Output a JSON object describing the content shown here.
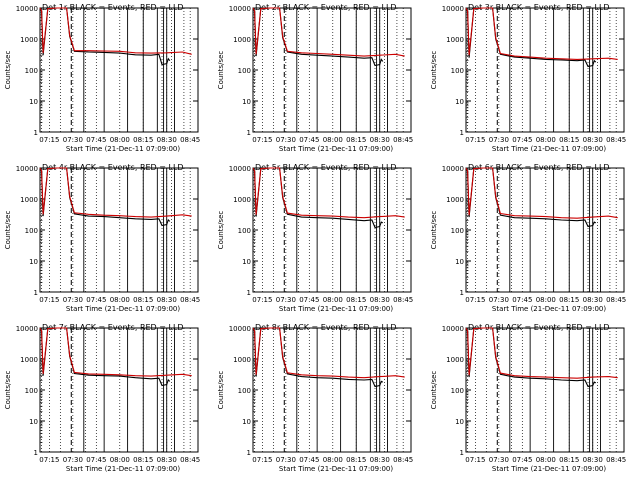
{
  "chart_data": [
    {
      "type": "line",
      "title": "Det 1r BLACK = Events, RED = LLD",
      "xlabel": "Start Time (21-Dec-11 07:09:00)",
      "ylabel": "Counts/sec",
      "y_scale": "log",
      "ylim": [
        1,
        10000
      ],
      "x_ticks": [
        "07:15",
        "07:30",
        "07:45",
        "08:00",
        "08:15",
        "08:30",
        "08:45"
      ],
      "y_ticks": [
        "1",
        "10",
        "100",
        "1000",
        "10000"
      ],
      "series": [
        {
          "name": "Events",
          "color": "#000000",
          "x": [
            "07:09",
            "07:10",
            "07:11",
            "07:14",
            "07:20",
            "07:26",
            "07:28",
            "07:31",
            "07:40",
            "07:50",
            "08:00",
            "08:10",
            "08:20",
            "08:25",
            "08:27",
            "08:30",
            "08:31",
            "08:32"
          ],
          "y": [
            10000,
            8000,
            300,
            9500,
            10000,
            10000,
            1200,
            400,
            380,
            370,
            350,
            310,
            300,
            320,
            150,
            160,
            230,
            200
          ]
        },
        {
          "name": "LLD",
          "color": "#cc0000",
          "x": [
            "07:09",
            "07:10",
            "07:11",
            "07:14",
            "07:20",
            "07:26",
            "07:28",
            "07:31",
            "07:40",
            "07:50",
            "08:00",
            "08:10",
            "08:20",
            "08:30",
            "08:40",
            "08:46"
          ],
          "y": [
            10000,
            8000,
            350,
            9500,
            10000,
            10000,
            1300,
            420,
            420,
            410,
            400,
            360,
            350,
            360,
            380,
            320
          ]
        }
      ]
    },
    {
      "type": "line",
      "title": "Det 2r BLACK = Events, RED = LLD",
      "xlabel": "Start Time (21-Dec-11 07:09:00)",
      "ylabel": "Counts/sec",
      "y_scale": "log",
      "ylim": [
        1,
        10000
      ],
      "x_ticks": [
        "07:15",
        "07:30",
        "07:45",
        "08:00",
        "08:15",
        "08:30",
        "08:45"
      ],
      "y_ticks": [
        "1",
        "10",
        "100",
        "1000",
        "10000"
      ],
      "series": [
        {
          "name": "Events",
          "color": "#000000",
          "x": [
            "07:09",
            "07:10",
            "07:11",
            "07:14",
            "07:20",
            "07:26",
            "07:28",
            "07:31",
            "07:40",
            "07:50",
            "08:00",
            "08:10",
            "08:20",
            "08:25",
            "08:27",
            "08:30",
            "08:31",
            "08:32"
          ],
          "y": [
            10000,
            8000,
            280,
            9500,
            10000,
            10000,
            1100,
            380,
            320,
            300,
            280,
            260,
            240,
            250,
            140,
            150,
            220,
            190
          ]
        },
        {
          "name": "LLD",
          "color": "#cc0000",
          "x": [
            "07:09",
            "07:10",
            "07:11",
            "07:14",
            "07:20",
            "07:26",
            "07:28",
            "07:31",
            "07:40",
            "07:50",
            "08:00",
            "08:10",
            "08:20",
            "08:30",
            "08:40",
            "08:46"
          ],
          "y": [
            10000,
            8000,
            320,
            9500,
            10000,
            10000,
            1200,
            400,
            360,
            340,
            320,
            300,
            280,
            300,
            320,
            280
          ]
        }
      ]
    },
    {
      "type": "line",
      "title": "Det 3r BLACK = Events, RED = LLD",
      "xlabel": "Start Time (21-Dec-11 07:09:00)",
      "ylabel": "Counts/sec",
      "y_scale": "log",
      "ylim": [
        1,
        10000
      ],
      "x_ticks": [
        "07:15",
        "07:30",
        "07:45",
        "08:00",
        "08:15",
        "08:30",
        "08:45"
      ],
      "y_ticks": [
        "1",
        "10",
        "100",
        "1000",
        "10000"
      ],
      "series": [
        {
          "name": "Events",
          "color": "#000000",
          "x": [
            "07:09",
            "07:10",
            "07:11",
            "07:14",
            "07:20",
            "07:26",
            "07:28",
            "07:31",
            "07:40",
            "07:50",
            "08:00",
            "08:10",
            "08:20",
            "08:25",
            "08:27",
            "08:30",
            "08:31",
            "08:32"
          ],
          "y": [
            10000,
            8000,
            250,
            9500,
            10000,
            10000,
            1000,
            320,
            260,
            240,
            220,
            210,
            200,
            210,
            130,
            140,
            200,
            180
          ]
        },
        {
          "name": "LLD",
          "color": "#cc0000",
          "x": [
            "07:09",
            "07:10",
            "07:11",
            "07:14",
            "07:20",
            "07:26",
            "07:28",
            "07:31",
            "07:40",
            "07:50",
            "08:00",
            "08:10",
            "08:20",
            "08:30",
            "08:40",
            "08:46"
          ],
          "y": [
            10000,
            8000,
            300,
            9500,
            10000,
            10000,
            1100,
            340,
            280,
            260,
            240,
            230,
            220,
            230,
            240,
            220
          ]
        }
      ]
    },
    {
      "type": "line",
      "title": "Det 4r BLACK = Events, RED = LLD",
      "xlabel": "Start Time (21-Dec-11 07:09:00)",
      "ylabel": "Counts/sec",
      "y_scale": "log",
      "ylim": [
        1,
        10000
      ],
      "x_ticks": [
        "07:15",
        "07:30",
        "07:45",
        "08:00",
        "08:15",
        "08:30",
        "08:45"
      ],
      "y_ticks": [
        "1",
        "10",
        "100",
        "1000",
        "10000"
      ],
      "series": [
        {
          "name": "Events",
          "color": "#000000",
          "x": [
            "07:09",
            "07:10",
            "07:11",
            "07:14",
            "07:20",
            "07:26",
            "07:28",
            "07:31",
            "07:40",
            "07:50",
            "08:00",
            "08:10",
            "08:20",
            "08:25",
            "08:27",
            "08:30",
            "08:31",
            "08:32"
          ],
          "y": [
            10000,
            8000,
            280,
            9500,
            10000,
            10000,
            1100,
            330,
            280,
            270,
            250,
            230,
            220,
            230,
            140,
            150,
            210,
            190
          ]
        },
        {
          "name": "LLD",
          "color": "#cc0000",
          "x": [
            "07:09",
            "07:10",
            "07:11",
            "07:14",
            "07:20",
            "07:26",
            "07:28",
            "07:31",
            "07:40",
            "07:50",
            "08:00",
            "08:10",
            "08:20",
            "08:30",
            "08:40",
            "08:46"
          ],
          "y": [
            10000,
            8000,
            320,
            9500,
            10000,
            10000,
            1200,
            360,
            320,
            300,
            290,
            270,
            260,
            280,
            310,
            280
          ]
        }
      ]
    },
    {
      "type": "line",
      "title": "Det 5r BLACK = Events, RED = LLD",
      "xlabel": "Start Time (21-Dec-11 07:09:00)",
      "ylabel": "Counts/sec",
      "y_scale": "log",
      "ylim": [
        1,
        10000
      ],
      "x_ticks": [
        "07:15",
        "07:30",
        "07:45",
        "08:00",
        "08:15",
        "08:30",
        "08:45"
      ],
      "y_ticks": [
        "1",
        "10",
        "100",
        "1000",
        "10000"
      ],
      "series": [
        {
          "name": "Events",
          "color": "#000000",
          "x": [
            "07:09",
            "07:10",
            "07:11",
            "07:14",
            "07:20",
            "07:26",
            "07:28",
            "07:31",
            "07:40",
            "07:50",
            "08:00",
            "08:10",
            "08:20",
            "08:25",
            "08:27",
            "08:30",
            "08:31",
            "08:32"
          ],
          "y": [
            10000,
            8000,
            270,
            9500,
            10000,
            10000,
            1100,
            320,
            260,
            250,
            240,
            220,
            200,
            210,
            120,
            130,
            180,
            170
          ]
        },
        {
          "name": "LLD",
          "color": "#cc0000",
          "x": [
            "07:09",
            "07:10",
            "07:11",
            "07:14",
            "07:20",
            "07:26",
            "07:28",
            "07:31",
            "07:40",
            "07:50",
            "08:00",
            "08:10",
            "08:20",
            "08:30",
            "08:40",
            "08:46"
          ],
          "y": [
            10000,
            8000,
            310,
            9500,
            10000,
            10000,
            1200,
            350,
            300,
            290,
            280,
            260,
            250,
            270,
            290,
            260
          ]
        }
      ]
    },
    {
      "type": "line",
      "title": "Det 6r BLACK = Events, RED = LLD",
      "xlabel": "Start Time (21-Dec-11 07:09:00)",
      "ylabel": "Counts/sec",
      "y_scale": "log",
      "ylim": [
        1,
        10000
      ],
      "x_ticks": [
        "07:15",
        "07:30",
        "07:45",
        "08:00",
        "08:15",
        "08:30",
        "08:45"
      ],
      "y_ticks": [
        "1",
        "10",
        "100",
        "1000",
        "10000"
      ],
      "series": [
        {
          "name": "Events",
          "color": "#000000",
          "x": [
            "07:09",
            "07:10",
            "07:11",
            "07:14",
            "07:20",
            "07:26",
            "07:28",
            "07:31",
            "07:40",
            "07:50",
            "08:00",
            "08:10",
            "08:20",
            "08:25",
            "08:27",
            "08:30",
            "08:31",
            "08:32"
          ],
          "y": [
            10000,
            8000,
            260,
            9500,
            10000,
            10000,
            1100,
            300,
            250,
            240,
            230,
            210,
            200,
            210,
            130,
            140,
            180,
            170
          ]
        },
        {
          "name": "LLD",
          "color": "#cc0000",
          "x": [
            "07:09",
            "07:10",
            "07:11",
            "07:14",
            "07:20",
            "07:26",
            "07:28",
            "07:31",
            "07:40",
            "07:50",
            "08:00",
            "08:10",
            "08:20",
            "08:30",
            "08:40",
            "08:46"
          ],
          "y": [
            10000,
            8000,
            300,
            9500,
            10000,
            10000,
            1200,
            340,
            290,
            280,
            270,
            250,
            240,
            260,
            280,
            250
          ]
        }
      ]
    },
    {
      "type": "line",
      "title": "Det 7r BLACK = Events, RED = LLD",
      "xlabel": "Start Time (21-Dec-11 07:09:00)",
      "ylabel": "Counts/sec",
      "y_scale": "log",
      "ylim": [
        1,
        10000
      ],
      "x_ticks": [
        "07:15",
        "07:30",
        "07:45",
        "08:00",
        "08:15",
        "08:30",
        "08:45"
      ],
      "y_ticks": [
        "1",
        "10",
        "100",
        "1000",
        "10000"
      ],
      "series": [
        {
          "name": "Events",
          "color": "#000000",
          "x": [
            "07:09",
            "07:10",
            "07:11",
            "07:14",
            "07:20",
            "07:26",
            "07:28",
            "07:31",
            "07:40",
            "07:50",
            "08:00",
            "08:10",
            "08:20",
            "08:25",
            "08:27",
            "08:30",
            "08:31",
            "08:32"
          ],
          "y": [
            10000,
            8000,
            290,
            9500,
            10000,
            10000,
            1200,
            340,
            300,
            290,
            280,
            250,
            230,
            240,
            140,
            150,
            210,
            190
          ]
        },
        {
          "name": "LLD",
          "color": "#cc0000",
          "x": [
            "07:09",
            "07:10",
            "07:11",
            "07:14",
            "07:20",
            "07:26",
            "07:28",
            "07:31",
            "07:40",
            "07:50",
            "08:00",
            "08:10",
            "08:20",
            "08:30",
            "08:40",
            "08:46"
          ],
          "y": [
            10000,
            8000,
            330,
            9500,
            10000,
            10000,
            1300,
            370,
            330,
            320,
            310,
            290,
            280,
            300,
            320,
            290
          ]
        }
      ]
    },
    {
      "type": "line",
      "title": "Det 8r BLACK = Events, RED = LLD",
      "xlabel": "Start Time (21-Dec-11 07:09:00)",
      "ylabel": "Counts/sec",
      "y_scale": "log",
      "ylim": [
        1,
        10000
      ],
      "x_ticks": [
        "07:15",
        "07:30",
        "07:45",
        "08:00",
        "08:15",
        "08:30",
        "08:45"
      ],
      "y_ticks": [
        "1",
        "10",
        "100",
        "1000",
        "10000"
      ],
      "series": [
        {
          "name": "Events",
          "color": "#000000",
          "x": [
            "07:09",
            "07:10",
            "07:11",
            "07:14",
            "07:20",
            "07:26",
            "07:28",
            "07:31",
            "07:40",
            "07:50",
            "08:00",
            "08:10",
            "08:20",
            "08:25",
            "08:27",
            "08:30",
            "08:31",
            "08:32"
          ],
          "y": [
            10000,
            8000,
            270,
            9500,
            10000,
            10000,
            1100,
            330,
            270,
            250,
            240,
            220,
            210,
            220,
            130,
            140,
            190,
            180
          ]
        },
        {
          "name": "LLD",
          "color": "#cc0000",
          "x": [
            "07:09",
            "07:10",
            "07:11",
            "07:14",
            "07:20",
            "07:26",
            "07:28",
            "07:31",
            "07:40",
            "07:50",
            "08:00",
            "08:10",
            "08:20",
            "08:30",
            "08:40",
            "08:46"
          ],
          "y": [
            10000,
            8000,
            310,
            9500,
            10000,
            10000,
            1200,
            360,
            310,
            290,
            280,
            260,
            250,
            270,
            290,
            260
          ]
        }
      ]
    },
    {
      "type": "line",
      "title": "Det 9r BLACK = Events, RED = LLD",
      "xlabel": "Start Time (21-Dec-11 07:09:00)",
      "ylabel": "Counts/sec",
      "y_scale": "log",
      "ylim": [
        1,
        10000
      ],
      "x_ticks": [
        "07:15",
        "07:30",
        "07:45",
        "08:00",
        "08:15",
        "08:30",
        "08:45"
      ],
      "y_ticks": [
        "1",
        "10",
        "100",
        "1000",
        "10000"
      ],
      "series": [
        {
          "name": "Events",
          "color": "#000000",
          "x": [
            "07:09",
            "07:10",
            "07:11",
            "07:14",
            "07:20",
            "07:26",
            "07:28",
            "07:31",
            "07:40",
            "07:50",
            "08:00",
            "08:10",
            "08:20",
            "08:25",
            "08:27",
            "08:30",
            "08:31",
            "08:32"
          ],
          "y": [
            10000,
            8000,
            260,
            9500,
            10000,
            10000,
            1100,
            320,
            260,
            240,
            230,
            210,
            200,
            210,
            130,
            140,
            180,
            170
          ]
        },
        {
          "name": "LLD",
          "color": "#cc0000",
          "x": [
            "07:09",
            "07:10",
            "07:11",
            "07:14",
            "07:20",
            "07:26",
            "07:28",
            "07:31",
            "07:40",
            "07:50",
            "08:00",
            "08:10",
            "08:20",
            "08:30",
            "08:40",
            "08:46"
          ],
          "y": [
            10000,
            8000,
            300,
            9500,
            10000,
            10000,
            1200,
            350,
            290,
            270,
            260,
            250,
            240,
            260,
            270,
            250
          ]
        }
      ]
    }
  ]
}
